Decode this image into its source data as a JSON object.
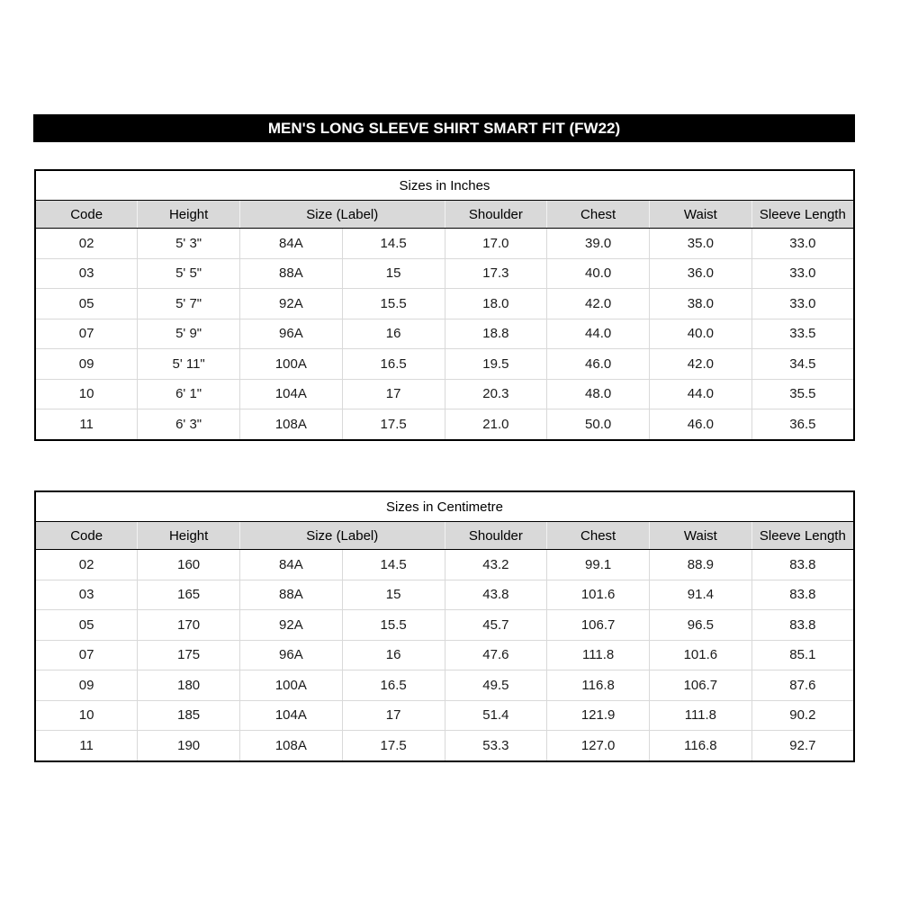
{
  "banner": {
    "title": "MEN'S LONG SLEEVE SHIRT SMART FIT (FW22)"
  },
  "colors": {
    "banner_bg": "#000000",
    "banner_text": "#ffffff",
    "header_bg": "#d9d9d9",
    "grid_line": "#d9d9d9",
    "frame": "#000000"
  },
  "tables": [
    {
      "title": "Sizes in Inches",
      "headers": [
        {
          "label": "Code",
          "span": 1
        },
        {
          "label": "Height",
          "span": 1
        },
        {
          "label": "Size (Label)",
          "span": 2
        },
        {
          "label": "Shoulder",
          "span": 1
        },
        {
          "label": "Chest",
          "span": 1
        },
        {
          "label": "Waist",
          "span": 1
        },
        {
          "label": "Sleeve Length",
          "span": 1
        }
      ],
      "rows": [
        [
          "02",
          "5' 3\"",
          "84A",
          "14.5",
          "17.0",
          "39.0",
          "35.0",
          "33.0"
        ],
        [
          "03",
          "5' 5\"",
          "88A",
          "15",
          "17.3",
          "40.0",
          "36.0",
          "33.0"
        ],
        [
          "05",
          "5' 7\"",
          "92A",
          "15.5",
          "18.0",
          "42.0",
          "38.0",
          "33.0"
        ],
        [
          "07",
          "5' 9\"",
          "96A",
          "16",
          "18.8",
          "44.0",
          "40.0",
          "33.5"
        ],
        [
          "09",
          "5' 11\"",
          "100A",
          "16.5",
          "19.5",
          "46.0",
          "42.0",
          "34.5"
        ],
        [
          "10",
          "6' 1\"",
          "104A",
          "17",
          "20.3",
          "48.0",
          "44.0",
          "35.5"
        ],
        [
          "11",
          "6' 3\"",
          "108A",
          "17.5",
          "21.0",
          "50.0",
          "46.0",
          "36.5"
        ]
      ]
    },
    {
      "title": "Sizes in Centimetre",
      "headers": [
        {
          "label": "Code",
          "span": 1
        },
        {
          "label": "Height",
          "span": 1
        },
        {
          "label": "Size (Label)",
          "span": 2
        },
        {
          "label": "Shoulder",
          "span": 1
        },
        {
          "label": "Chest",
          "span": 1
        },
        {
          "label": "Waist",
          "span": 1
        },
        {
          "label": "Sleeve Length",
          "span": 1
        }
      ],
      "rows": [
        [
          "02",
          "160",
          "84A",
          "14.5",
          "43.2",
          "99.1",
          "88.9",
          "83.8"
        ],
        [
          "03",
          "165",
          "88A",
          "15",
          "43.8",
          "101.6",
          "91.4",
          "83.8"
        ],
        [
          "05",
          "170",
          "92A",
          "15.5",
          "45.7",
          "106.7",
          "96.5",
          "83.8"
        ],
        [
          "07",
          "175",
          "96A",
          "16",
          "47.6",
          "111.8",
          "101.6",
          "85.1"
        ],
        [
          "09",
          "180",
          "100A",
          "16.5",
          "49.5",
          "116.8",
          "106.7",
          "87.6"
        ],
        [
          "10",
          "185",
          "104A",
          "17",
          "51.4",
          "121.9",
          "111.8",
          "90.2"
        ],
        [
          "11",
          "190",
          "108A",
          "17.5",
          "53.3",
          "127.0",
          "116.8",
          "92.7"
        ]
      ]
    }
  ]
}
